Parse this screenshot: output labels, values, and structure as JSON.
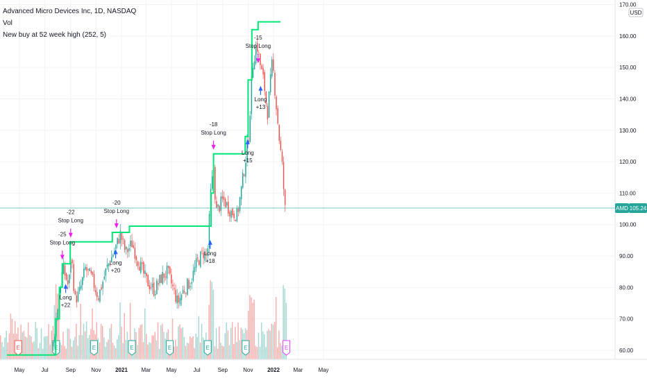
{
  "legend": {
    "symbol_line": "Advanced Micro Devices Inc, 1D, NASDAQ",
    "volume_label": "Vol",
    "strategy_label": "New buy at 52 week high (252, 5)"
  },
  "price_axis": {
    "currency": "USD",
    "ticks": [
      "170.00",
      "160.00",
      "150.00",
      "140.00",
      "130.00",
      "120.00",
      "110.00",
      "100.00",
      "90.00",
      "80.00",
      "70.00",
      "60.00"
    ],
    "tick_values": [
      170,
      160,
      150,
      140,
      130,
      120,
      110,
      100,
      90,
      80,
      70,
      60
    ],
    "last_price_label": "105.24",
    "last_price": 105.24,
    "ticker_tag": "AMD"
  },
  "time_axis": {
    "labels": [
      "May",
      "Jul",
      "Sep",
      "Nov",
      "2021",
      "Mar",
      "May",
      "Jul",
      "Sep",
      "Nov",
      "2022",
      "Mar",
      "May"
    ],
    "bold": [
      false,
      false,
      false,
      false,
      true,
      false,
      false,
      false,
      false,
      false,
      true,
      false,
      false
    ]
  },
  "colors": {
    "up": "#26a69a",
    "down": "#ef5350",
    "vol_up": "#a8d8d3",
    "vol_down": "#f5b1af",
    "stop_line": "#00e676",
    "long_marker": "#2962ff",
    "stop_marker": "#e91ee9",
    "last_price_line": "#26a69a",
    "earnings_up": "#26a69a",
    "earnings_down": "#ef5350",
    "earnings_upcoming": "#e040fb"
  },
  "trades": [
    {
      "entry_label": "Long",
      "entry_pnl": "+22",
      "exit_label": "Stop Long",
      "exit_pnl": "-25"
    },
    {
      "entry_label": "",
      "entry_pnl": "",
      "exit_label": "Stop Long",
      "exit_pnl": "-22"
    },
    {
      "entry_label": "Long",
      "entry_pnl": "+20",
      "exit_label": "Stop Long",
      "exit_pnl": "-20"
    },
    {
      "entry_label": "Long",
      "entry_pnl": "+18",
      "exit_label": "Stop Long",
      "exit_pnl": "-18"
    },
    {
      "entry_label": "Long",
      "entry_pnl": "+15",
      "exit_label": "Stop Long",
      "exit_pnl": "-15"
    },
    {
      "entry_label": "Long",
      "entry_pnl": "+13",
      "exit_label": "",
      "exit_pnl": ""
    }
  ],
  "earnings_letter": "E",
  "chart_data": {
    "type": "candlestick",
    "title": "Advanced Micro Devices Inc, 1D, NASDAQ",
    "y_range": [
      58,
      171
    ],
    "price_path": [
      {
        "date": "2020-07-20",
        "value": 62
      },
      {
        "date": "2020-07-27",
        "value": 70
      },
      {
        "date": "2020-08-03",
        "value": 78
      },
      {
        "date": "2020-08-12",
        "value": 86
      },
      {
        "date": "2020-08-20",
        "value": 83
      },
      {
        "date": "2020-08-26",
        "value": 80
      },
      {
        "date": "2020-09-01",
        "value": 91
      },
      {
        "date": "2020-09-10",
        "value": 76
      },
      {
        "date": "2020-09-20",
        "value": 78
      },
      {
        "date": "2020-10-05",
        "value": 86
      },
      {
        "date": "2020-10-20",
        "value": 83
      },
      {
        "date": "2020-11-05",
        "value": 77
      },
      {
        "date": "2020-11-25",
        "value": 86
      },
      {
        "date": "2020-12-15",
        "value": 92
      },
      {
        "date": "2020-12-28",
        "value": 97
      },
      {
        "date": "2021-01-10",
        "value": 91
      },
      {
        "date": "2021-01-25",
        "value": 94
      },
      {
        "date": "2021-02-10",
        "value": 88
      },
      {
        "date": "2021-03-01",
        "value": 82
      },
      {
        "date": "2021-03-20",
        "value": 79
      },
      {
        "date": "2021-04-05",
        "value": 83
      },
      {
        "date": "2021-04-20",
        "value": 85
      },
      {
        "date": "2021-05-05",
        "value": 79
      },
      {
        "date": "2021-05-15",
        "value": 75
      },
      {
        "date": "2021-05-28",
        "value": 79
      },
      {
        "date": "2021-06-15",
        "value": 82
      },
      {
        "date": "2021-06-30",
        "value": 88
      },
      {
        "date": "2021-07-15",
        "value": 91
      },
      {
        "date": "2021-07-25",
        "value": 90
      },
      {
        "date": "2021-08-02",
        "value": 110
      },
      {
        "date": "2021-08-09",
        "value": 118
      },
      {
        "date": "2021-08-15",
        "value": 104
      },
      {
        "date": "2021-09-01",
        "value": 108
      },
      {
        "date": "2021-09-20",
        "value": 104
      },
      {
        "date": "2021-10-05",
        "value": 103
      },
      {
        "date": "2021-10-20",
        "value": 116
      },
      {
        "date": "2021-11-01",
        "value": 128
      },
      {
        "date": "2021-11-10",
        "value": 150
      },
      {
        "date": "2021-11-20",
        "value": 158
      },
      {
        "date": "2021-11-30",
        "value": 150
      },
      {
        "date": "2021-12-08",
        "value": 145
      },
      {
        "date": "2021-12-16",
        "value": 135
      },
      {
        "date": "2021-12-28",
        "value": 152
      },
      {
        "date": "2022-01-05",
        "value": 140
      },
      {
        "date": "2022-01-13",
        "value": 128
      },
      {
        "date": "2022-01-21",
        "value": 118
      },
      {
        "date": "2022-01-27",
        "value": 105
      },
      {
        "date": "2022-01-31",
        "value": 104
      }
    ],
    "trailing_stop_steps": [
      {
        "from": "2020-04-01",
        "to": "2020-07-27",
        "value": 58.5
      },
      {
        "from": "2020-07-27",
        "to": "2020-08-05",
        "value": 70
      },
      {
        "from": "2020-08-05",
        "to": "2020-08-12",
        "value": 80
      },
      {
        "from": "2020-08-12",
        "to": "2020-08-31",
        "value": 87.5
      },
      {
        "from": "2020-08-31",
        "to": "2020-12-10",
        "value": 94.5
      },
      {
        "from": "2020-12-10",
        "to": "2021-01-20",
        "value": 97.5
      },
      {
        "from": "2021-01-20",
        "to": "2021-08-04",
        "value": 99.5
      },
      {
        "from": "2021-08-04",
        "to": "2021-08-10",
        "value": 110
      },
      {
        "from": "2021-08-10",
        "to": "2021-10-25",
        "value": 122.5
      },
      {
        "from": "2021-10-25",
        "to": "2021-11-01",
        "value": 128
      },
      {
        "from": "2021-11-01",
        "to": "2021-11-10",
        "value": 146
      },
      {
        "from": "2021-11-10",
        "to": "2021-11-25",
        "value": 162
      },
      {
        "from": "2021-11-25",
        "to": "2022-01-18",
        "value": 164.5
      }
    ],
    "volume_ticks": 300,
    "series": [
      {
        "name": "Vol"
      },
      {
        "name": "New buy at 52 week high (252, 5)"
      }
    ]
  }
}
